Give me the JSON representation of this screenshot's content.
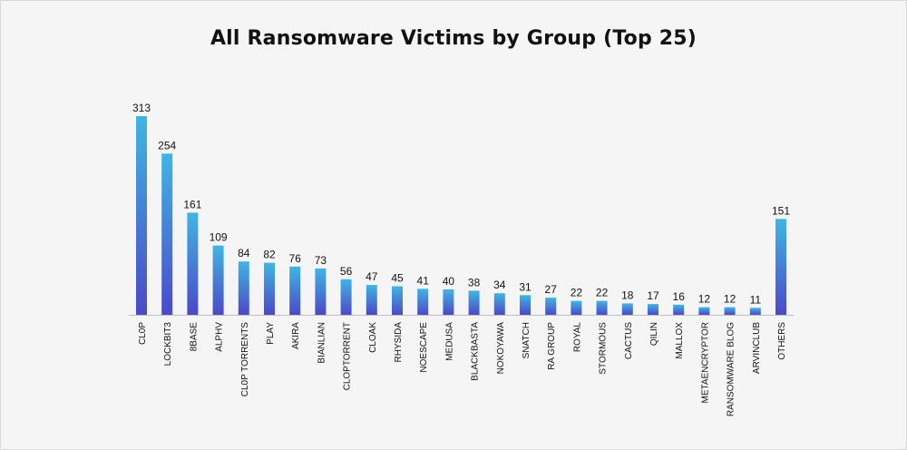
{
  "chart_data": {
    "type": "bar",
    "title": "All Ransomware Victims by Group (Top 25)",
    "xlabel": "",
    "ylabel": "",
    "categories": [
      "CL0P",
      "LOCKBIT3",
      "8BASE",
      "ALPHV",
      "CL0P TORRENTS",
      "PLAY",
      "AKIRA",
      "BIANLIAN",
      "CLOPTORRENT",
      "CLOAK",
      "RHYSIDA",
      "NOESCAPE",
      "MEDUSA",
      "BLACKBASTA",
      "NOKOYAWA",
      "SNATCH",
      "RA GROUP",
      "ROYAL",
      "STORMOUS",
      "CACTUS",
      "QILIN",
      "MALLOX",
      "METAENCRYPTOR",
      "RANSOMWARE BLOG",
      "ARVINCLUB",
      "OTHERS"
    ],
    "values": [
      313,
      254,
      161,
      109,
      84,
      82,
      76,
      73,
      56,
      47,
      45,
      41,
      40,
      38,
      34,
      31,
      27,
      22,
      22,
      18,
      17,
      16,
      12,
      12,
      11,
      151
    ],
    "ylim": [
      0,
      313
    ],
    "grid": false,
    "legend": "none",
    "colors": {
      "bar_top": "#3fb6e3",
      "bar_bottom": "#4b48c9",
      "axis": "#bfbfbf",
      "text": "#111111"
    }
  }
}
